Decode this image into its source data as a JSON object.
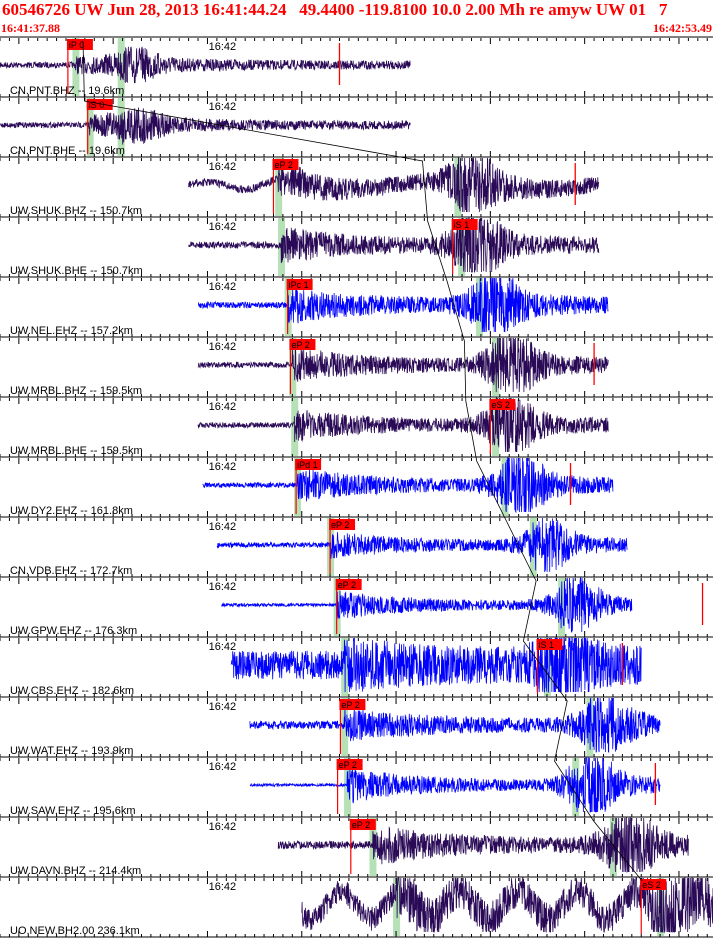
{
  "header": {
    "title": "60546726 UW Jun 28, 2013 16:41:44.24   49.4400 -119.8100 10.0 2.00 Mh re amyw UW 01   7",
    "start_time": "16:41:37.88",
    "end_time": "16:42:53.49"
  },
  "colors": {
    "trace_dark": "#2a0a57",
    "trace_blue": "#0000ff",
    "pick_red": "#ff0000",
    "window_green": "#a9dca9",
    "axis": "#000000"
  },
  "chart_data": {
    "type": "seismogram",
    "x_unit": "seconds after 16:41:37.88",
    "x_range": [
      0,
      75.61
    ],
    "time_tick": {
      "label": "16:42",
      "t": 22.12
    },
    "predicted_phase": "curved black line, predicted S arrival",
    "traces": [
      {
        "label": "CN.PNT.BHZ -- 19.6km",
        "color": "dark",
        "start": 0,
        "end": 43.5,
        "p": 8.0,
        "s": 12.8,
        "amp": 10,
        "bg": 0.3,
        "picks": [
          {
            "label": "iP 0",
            "t": 7.2,
            "marker": "flag"
          },
          {
            "label": "",
            "t": 36.0,
            "marker": "line"
          }
        ]
      },
      {
        "label": "CN.PNT.BHE -- 19.6km",
        "color": "dark",
        "start": 0,
        "end": 43.5,
        "p": 9.5,
        "s": 12.8,
        "amp": 11,
        "bg": 0.25,
        "picks": [
          {
            "label": "iS 0",
            "t": 9.3,
            "marker": "flag"
          }
        ]
      },
      {
        "label": "UW.SHUK.BHZ -- 150.7km",
        "color": "dark",
        "start": 20.0,
        "end": 63.5,
        "p": 29.5,
        "s": 48.5,
        "amp": 22,
        "bg": 0.18,
        "longp": 1,
        "picks": [
          {
            "label": "eP 2",
            "t": 29.0,
            "marker": "flag"
          },
          {
            "label": "",
            "t": 61.0,
            "marker": "line"
          }
        ]
      },
      {
        "label": "UW.SHUK.BHE -- 150.7km",
        "color": "dark",
        "start": 20.0,
        "end": 63.5,
        "p": 29.8,
        "s": 48.9,
        "amp": 24,
        "bg": 0.14,
        "picks": [
          {
            "label": "iS 1",
            "t": 48.0,
            "marker": "flag"
          }
        ]
      },
      {
        "label": "UW.NEL.EHZ -- 157.2km",
        "color": "blue",
        "start": 21.0,
        "end": 64.5,
        "p": 30.5,
        "s": 50.8,
        "amp": 26,
        "bg": 0.12,
        "picks": [
          {
            "label": "iPc 1",
            "t": 30.5,
            "marker": "flag"
          }
        ]
      },
      {
        "label": "UW.MRBL.BHZ -- 159.5km",
        "color": "dark",
        "start": 21.0,
        "end": 64.5,
        "p": 31.0,
        "s": 52.5,
        "amp": 24,
        "bg": 0.12,
        "picks": [
          {
            "label": "eP 2",
            "t": 30.8,
            "marker": "flag"
          },
          {
            "label": "",
            "t": 63.0,
            "marker": "line"
          }
        ]
      },
      {
        "label": "UW.MRBL.BHE -- 159.5km",
        "color": "dark",
        "start": 21.0,
        "end": 64.5,
        "p": 31.2,
        "s": 52.5,
        "amp": 22,
        "bg": 0.12,
        "picks": [
          {
            "label": "eS 2",
            "t": 52.0,
            "marker": "flag"
          }
        ]
      },
      {
        "label": "UW.DY2.EHZ -- 161.8km",
        "color": "blue",
        "start": 21.5,
        "end": 65.0,
        "p": 31.5,
        "s": 53.5,
        "amp": 24,
        "bg": 0.1,
        "picks": [
          {
            "label": "iPd 1",
            "t": 31.4,
            "marker": "flag"
          },
          {
            "label": "",
            "t": 60.5,
            "marker": "line"
          }
        ]
      },
      {
        "label": "CN.VDB.EHZ -- 172.7km",
        "color": "blue",
        "start": 23.0,
        "end": 66.5,
        "p": 35.0,
        "s": 56.5,
        "amp": 18,
        "bg": 0.14,
        "picks": [
          {
            "label": "eP 2",
            "t": 35.0,
            "marker": "flag"
          }
        ]
      },
      {
        "label": "UW.GPW.EHZ -- 176.3km",
        "color": "blue",
        "start": 23.5,
        "end": 67.0,
        "p": 35.7,
        "s": 59.5,
        "amp": 20,
        "bg": 0.08,
        "picks": [
          {
            "label": "eP 2",
            "t": 35.7,
            "marker": "flag"
          },
          {
            "label": "",
            "t": 74.5,
            "marker": "line"
          }
        ]
      },
      {
        "label": "UW.CBS.EHZ -- 182.6km",
        "color": "blue",
        "start": 24.5,
        "end": 68.0,
        "p": 36.5,
        "s": 58.0,
        "amp": 24,
        "bg": 0.6,
        "picks": [
          {
            "label": "iS 1",
            "t": 57.0,
            "marker": "flag"
          },
          {
            "label": "",
            "t": 66.0,
            "marker": "line"
          }
        ]
      },
      {
        "label": "UW.WAT.EHZ -- 193.9km",
        "color": "blue",
        "start": 26.5,
        "end": 70.0,
        "p": 36.5,
        "s": 62.5,
        "amp": 22,
        "bg": 0.18,
        "picks": [
          {
            "label": "eP 2",
            "t": 36.1,
            "marker": "flag"
          }
        ]
      },
      {
        "label": "UW.SAW.EHZ -- 195.6km",
        "color": "blue",
        "start": 26.5,
        "end": 70.0,
        "p": 36.8,
        "s": 61.0,
        "amp": 26,
        "bg": 0.05,
        "picks": [
          {
            "label": "eP 2",
            "t": 35.8,
            "marker": "flag"
          },
          {
            "label": "",
            "t": 69.5,
            "marker": "line"
          }
        ]
      },
      {
        "label": "UW.DAVN.BHZ -- 214.4km",
        "color": "dark",
        "start": 29.5,
        "end": 73.0,
        "p": 39.5,
        "s": 65.0,
        "amp": 26,
        "bg": 0.15,
        "picks": [
          {
            "label": "eP 2",
            "t": 37.2,
            "marker": "flag"
          }
        ]
      },
      {
        "label": "UO.NEW.BH2.00 236.1km",
        "color": "dark",
        "start": 32.0,
        "end": 75.61,
        "p": 42.0,
        "s": 70.0,
        "amp": 24,
        "bg": 0.5,
        "longp": 2,
        "picks": [
          {
            "label": "eS 2",
            "t": 68.0,
            "marker": "flag"
          }
        ]
      }
    ]
  }
}
